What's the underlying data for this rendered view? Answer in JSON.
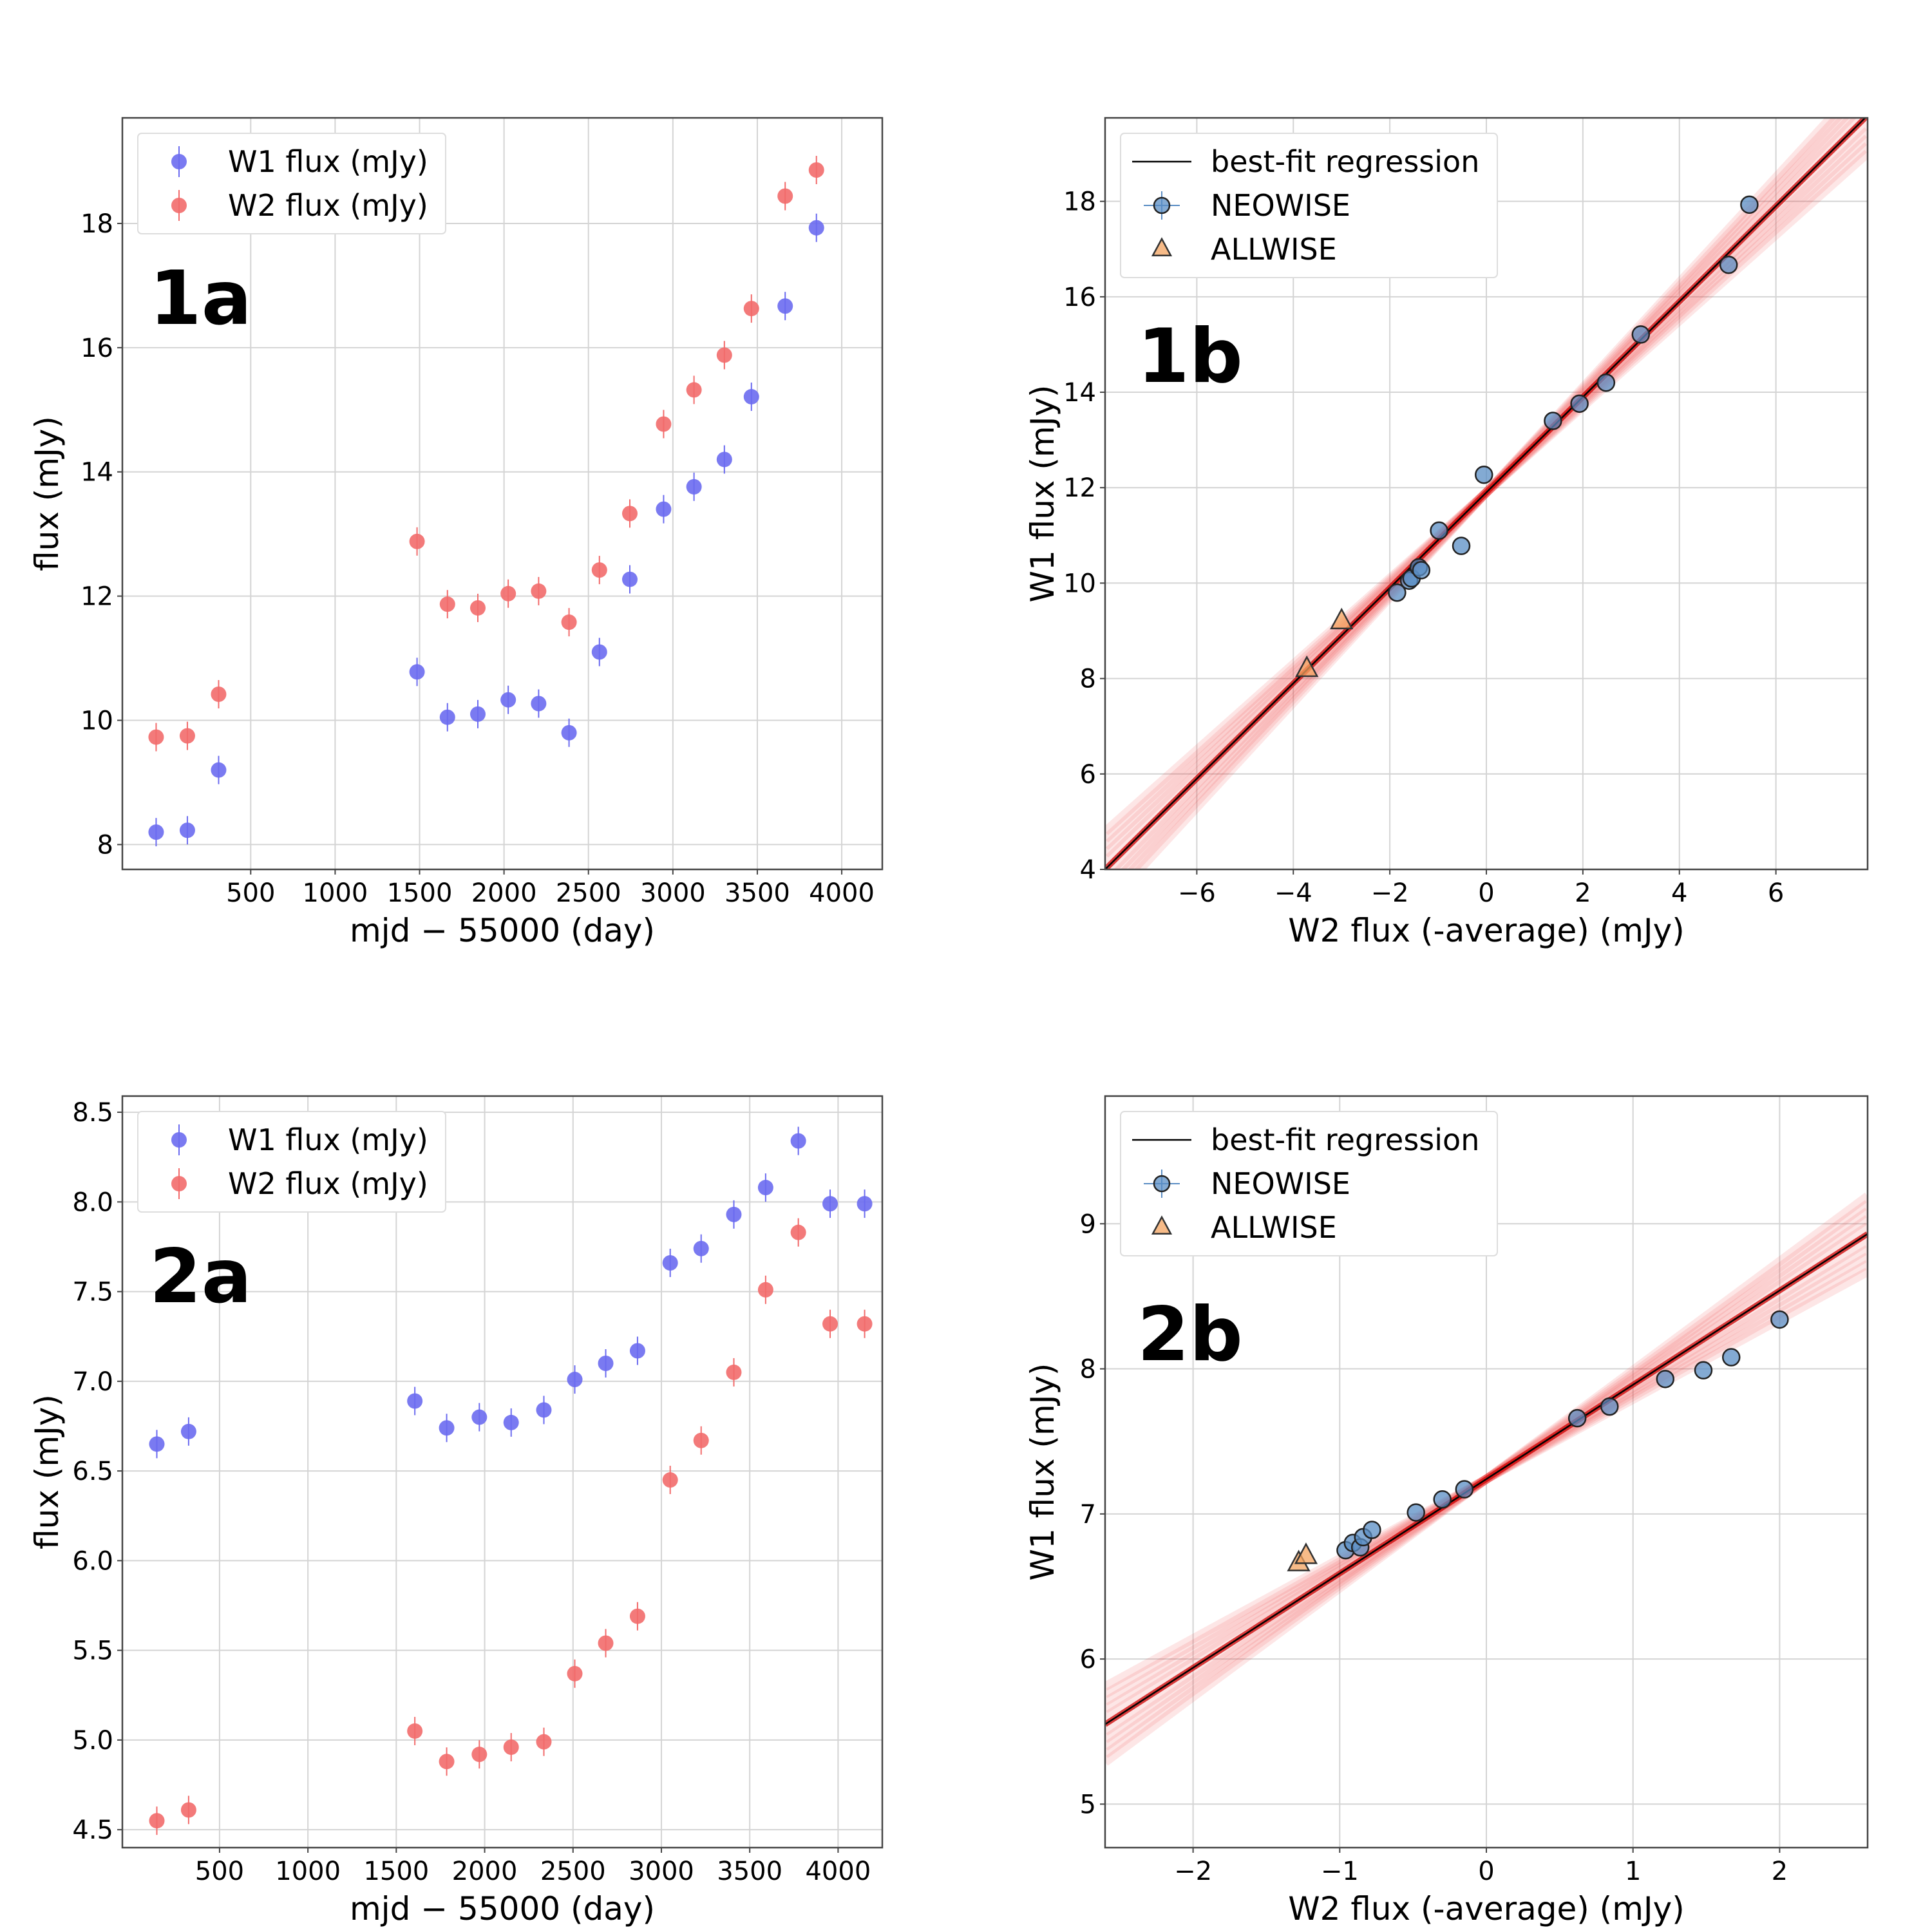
{
  "chart_data": [
    {
      "id": "1a",
      "type": "scatter",
      "panel_label": "1a",
      "xlabel": "mjd − 55000 (day)",
      "ylabel": "flux (mJy)",
      "xlim": [
        -260,
        4240
      ],
      "ylim": [
        7.6,
        19.7
      ],
      "xticks": [
        500,
        1000,
        1500,
        2000,
        2500,
        3000,
        3500,
        4000
      ],
      "yticks": [
        8,
        10,
        12,
        14,
        16,
        18
      ],
      "grid": true,
      "legend_position": "upper-left",
      "series": [
        {
          "name": "W1 flux (mJy)",
          "color": "#6b6bf0",
          "marker": "circle",
          "x": [
            -60,
            125,
            310,
            1485,
            1665,
            1845,
            2025,
            2205,
            2385,
            2565,
            2745,
            2945,
            3125,
            3305,
            3465,
            3665,
            3850
          ],
          "y": [
            8.2,
            8.23,
            9.2,
            10.78,
            10.05,
            10.1,
            10.33,
            10.27,
            9.8,
            11.1,
            12.27,
            13.4,
            13.76,
            14.2,
            15.21,
            16.67,
            17.93
          ]
        },
        {
          "name": "W2 flux (mJy)",
          "color": "#f26b6b",
          "marker": "circle",
          "x": [
            -60,
            125,
            310,
            1485,
            1665,
            1845,
            2025,
            2205,
            2385,
            2565,
            2745,
            2945,
            3125,
            3305,
            3465,
            3665,
            3850
          ],
          "y": [
            9.73,
            9.75,
            10.42,
            12.88,
            11.87,
            11.81,
            12.04,
            12.08,
            11.58,
            12.42,
            13.33,
            14.77,
            15.32,
            15.88,
            16.63,
            18.44,
            18.86
          ]
        }
      ]
    },
    {
      "id": "1b",
      "type": "scatter",
      "panel_label": "1b",
      "xlabel": "W2 flux (-average) (mJy)",
      "ylabel": "W1 flux (mJy)",
      "xlim": [
        -7.9,
        7.9
      ],
      "ylim": [
        4,
        19.75
      ],
      "xticks": [
        -6,
        -4,
        -2,
        0,
        2,
        4,
        6
      ],
      "yticks": [
        4,
        6,
        8,
        10,
        12,
        14,
        16,
        18
      ],
      "grid": true,
      "legend_position": "upper-left",
      "regression": {
        "name": "best-fit regression",
        "slope": 1.0,
        "intercept": 11.9,
        "line_color": "#000000",
        "band_color": "#ee3333"
      },
      "series": [
        {
          "name": "NEOWISE",
          "color": "#5a8dc4",
          "marker": "circle",
          "x": [
            -1.85,
            -1.6,
            -1.55,
            -1.4,
            -1.35,
            -0.98,
            -0.52,
            -0.05,
            1.38,
            1.93,
            2.48,
            3.2,
            5.02,
            5.45
          ],
          "y": [
            9.8,
            10.05,
            10.1,
            10.33,
            10.27,
            11.1,
            10.78,
            12.27,
            13.4,
            13.76,
            14.2,
            15.21,
            16.67,
            17.93
          ]
        },
        {
          "name": "ALLWISE",
          "color": "#f4a460",
          "marker": "triangle",
          "x": [
            -3.72,
            -3.0
          ],
          "y": [
            8.2,
            9.2
          ]
        }
      ]
    },
    {
      "id": "2a",
      "type": "scatter",
      "panel_label": "2a",
      "xlabel": "mjd − 55000 (day)",
      "ylabel": "flux (mJy)",
      "xlim": [
        -50,
        4250
      ],
      "ylim": [
        4.4,
        8.59
      ],
      "xticks": [
        500,
        1000,
        1500,
        2000,
        2500,
        3000,
        3500,
        4000
      ],
      "yticks": [
        4.5,
        5.0,
        5.5,
        6.0,
        6.5,
        7.0,
        7.5,
        8.0,
        8.5
      ],
      "grid": true,
      "legend_position": "upper-left",
      "series": [
        {
          "name": "W1 flux (mJy)",
          "color": "#6b6bf0",
          "marker": "circle",
          "x": [
            145,
            325,
            1605,
            1785,
            1970,
            2150,
            2335,
            2510,
            2685,
            2865,
            3050,
            3225,
            3410,
            3590,
            3775,
            3955,
            4150
          ],
          "y": [
            6.65,
            6.72,
            6.89,
            6.74,
            6.8,
            6.77,
            6.84,
            7.01,
            7.1,
            7.17,
            7.66,
            7.74,
            7.93,
            8.08,
            8.34,
            7.99,
            7.99
          ]
        },
        {
          "name": "W2 flux (mJy)",
          "color": "#f26b6b",
          "marker": "circle",
          "x": [
            145,
            325,
            1605,
            1785,
            1970,
            2150,
            2335,
            2510,
            2685,
            2865,
            3050,
            3225,
            3410,
            3590,
            3775,
            3955,
            4150
          ],
          "y": [
            4.55,
            4.61,
            5.05,
            4.88,
            4.92,
            4.96,
            4.99,
            5.37,
            5.54,
            5.69,
            6.45,
            6.67,
            7.05,
            7.51,
            7.83,
            7.32,
            7.32
          ]
        }
      ]
    },
    {
      "id": "2b",
      "type": "scatter",
      "panel_label": "2b",
      "xlabel": "W2 flux (-average) (mJy)",
      "ylabel": "W1 flux (mJy)",
      "xlim": [
        -2.6,
        2.6
      ],
      "ylim": [
        4.7,
        9.88
      ],
      "xticks": [
        -2,
        -1,
        0,
        1,
        2
      ],
      "yticks": [
        5,
        6,
        7,
        8,
        9
      ],
      "grid": true,
      "legend_position": "upper-left",
      "regression": {
        "name": "best-fit regression",
        "slope": 0.65,
        "intercept": 7.24,
        "line_color": "#000000",
        "band_color": "#ee3333"
      },
      "series": [
        {
          "name": "NEOWISE",
          "color": "#5a8dc4",
          "marker": "circle",
          "x": [
            -0.96,
            -0.91,
            -0.86,
            -0.84,
            -0.78,
            -0.48,
            -0.3,
            -0.15,
            0.62,
            0.84,
            1.22,
            1.48,
            1.67,
            2.0
          ],
          "y": [
            6.75,
            6.8,
            6.77,
            6.84,
            6.89,
            7.01,
            7.1,
            7.17,
            7.66,
            7.74,
            7.93,
            7.99,
            8.08,
            8.34
          ]
        },
        {
          "name": "ALLWISE",
          "color": "#f4a460",
          "marker": "triangle",
          "x": [
            -1.28,
            -1.23
          ],
          "y": [
            6.66,
            6.71
          ]
        }
      ]
    }
  ]
}
